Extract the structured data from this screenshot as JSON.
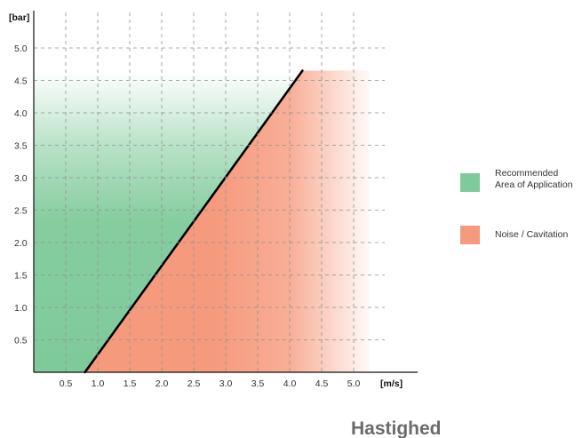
{
  "chart_data": {
    "type": "area",
    "title": "Hastighed",
    "xlabel": "[m/s]",
    "ylabel": "[bar]",
    "x_ticks": [
      "0.5",
      "1.0",
      "1.5",
      "2.0",
      "2.5",
      "3.0",
      "3.5",
      "4.0",
      "4.5",
      "5.0"
    ],
    "y_ticks": [
      "0.5",
      "1.0",
      "1.5",
      "2.0",
      "2.5",
      "3.0",
      "3.5",
      "4.0",
      "4.5",
      "5.0"
    ],
    "xlim": [
      0,
      5.25
    ],
    "ylim": [
      0,
      5.4
    ],
    "grid": true,
    "grid_style": "dashed",
    "boundary_line": {
      "x": [
        0.8,
        4.2
      ],
      "y": [
        0,
        4.65
      ]
    },
    "regions_ymax": 4.65,
    "regions_xmax": 5.25,
    "legend_position": "right",
    "series": [
      {
        "name": "Recommended Area of Application",
        "color": "#7fca9a",
        "region": "left-of-line"
      },
      {
        "name": "Noise / Cavitation",
        "color": "#f69a7d",
        "region": "right-of-line"
      }
    ],
    "legend": [
      {
        "lines": [
          "Recommended",
          "Area of Application"
        ],
        "color": "#7fca9a"
      },
      {
        "lines": [
          "Noise / Cavitation"
        ],
        "color": "#f69a7d"
      }
    ]
  }
}
